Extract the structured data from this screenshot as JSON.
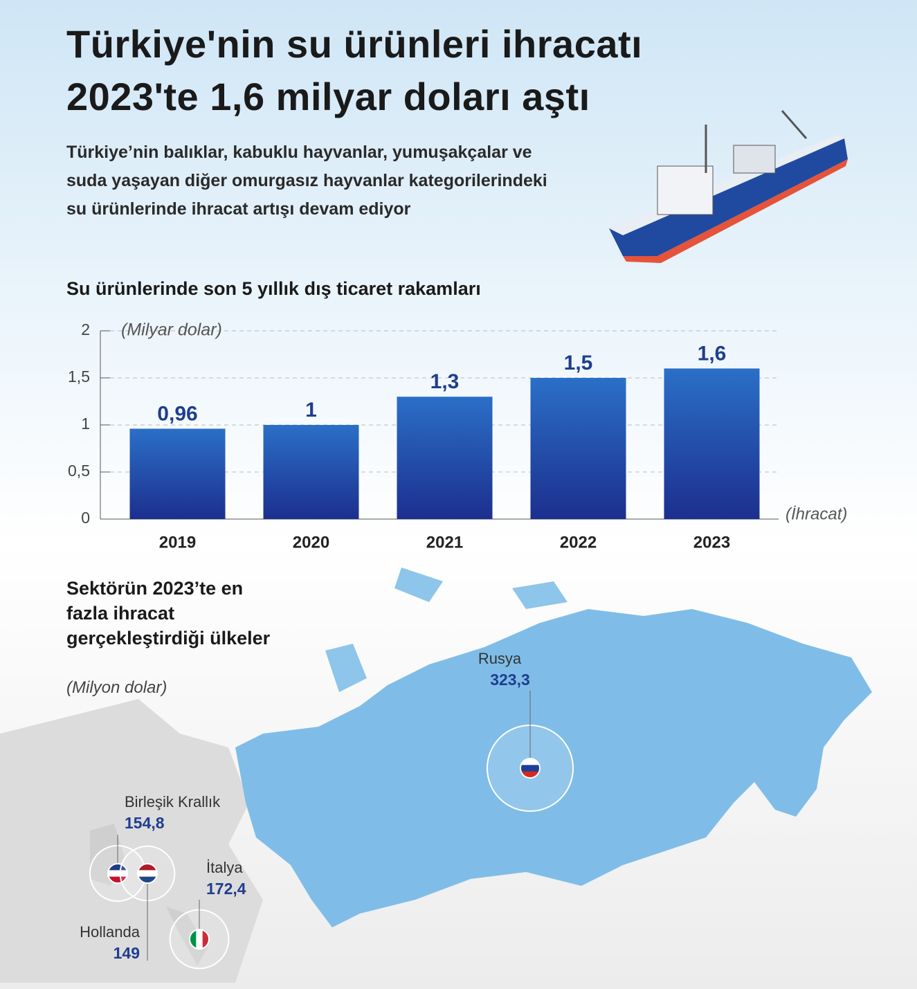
{
  "header": {
    "title": "Türkiye'nin su ürünleri ihracatı 2023'te 1,6 milyar doları aştı",
    "description": "Türkiye’nin balıklar, kabuklu hayvanlar, yumuşakçalar ve suda yaşayan diğer omurgasız hayvanlar kategorilerindeki su ürünlerinde ihracat artışı devam ediyor"
  },
  "chart_data": {
    "type": "bar",
    "title": "Su ürünlerinde son 5 yıllık dış ticaret rakamları",
    "y_label": "(Milyar dolar)",
    "x_label": "(İhracat)",
    "categories": [
      "2019",
      "2020",
      "2021",
      "2022",
      "2023"
    ],
    "values": [
      0.96,
      1,
      1.3,
      1.5,
      1.6
    ],
    "value_labels": [
      "0,96",
      "1",
      "1,3",
      "1,5",
      "1,6"
    ],
    "color": "#1f4fb0",
    "ylim": [
      0,
      2
    ],
    "yticks": [
      0,
      {
        "value": 0.5,
        "label": "0,5"
      },
      1,
      {
        "value": 1.5,
        "label": "1,5"
      },
      2
    ],
    "grid": true
  },
  "map": {
    "title": "Sektörün 2023’te en fazla ihracat gerçekleştirdiği ülkeler",
    "unit": "(Milyon dolar)",
    "countries": [
      {
        "name": "Rusya",
        "value": 323.3,
        "value_label": "323,3"
      },
      {
        "name": "Birleşik Krallık",
        "value": 154.8,
        "value_label": "154,8"
      },
      {
        "name": "Hollanda",
        "value": 149,
        "value_label": "149"
      },
      {
        "name": "İtalya",
        "value": 172.4,
        "value_label": "172,4"
      }
    ]
  }
}
